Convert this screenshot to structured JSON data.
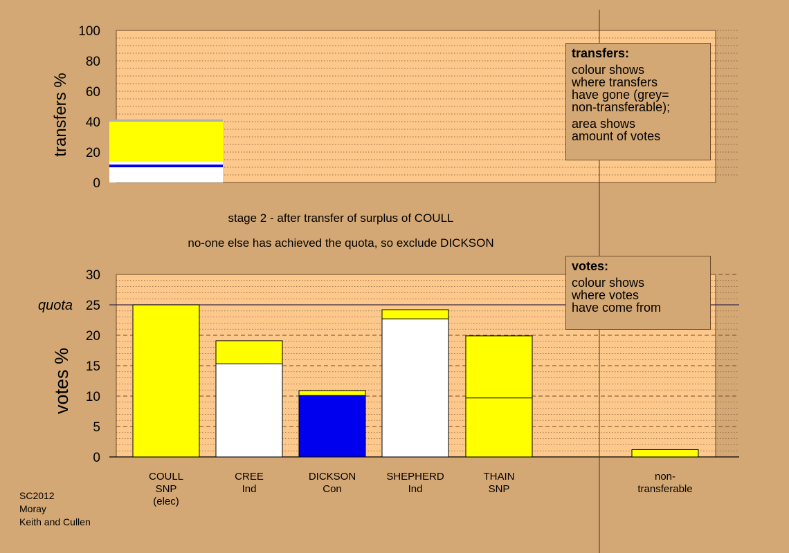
{
  "colors": {
    "background": "#d4a874",
    "plot_bg": "#fcc88c",
    "yellow": "#ffff00",
    "white": "#ffffff",
    "blue": "#0000ee",
    "grey": "#b0b0b0"
  },
  "captions": {
    "line1": "stage 2 - after transfer of surplus of COULL",
    "line2": "no-one else has achieved the quota, so exclude DICKSON"
  },
  "legend_transfers": {
    "title": "transfers:",
    "lines": [
      "colour shows",
      "where transfers",
      "have gone (grey=",
      "non-transferable);"
    ],
    "lines2": [
      "area shows",
      "amount of votes"
    ]
  },
  "legend_votes": {
    "title": "votes:",
    "lines": [
      "colour shows",
      "where votes",
      "have come from"
    ]
  },
  "credits": [
    "SC2012",
    "Moray",
    "Keith and Cullen"
  ],
  "chart_data": [
    {
      "type": "bar",
      "name_key": "transfers",
      "ylabel": "transfers %",
      "ylim": [
        0,
        100
      ],
      "yticks": [
        0,
        20,
        40,
        60,
        80,
        100
      ],
      "grid": "dotted",
      "stacked": true,
      "segments": [
        {
          "color": "white",
          "value": 10
        },
        {
          "color": "blue",
          "value": 1.8
        },
        {
          "color": "white",
          "value": 2.2
        },
        {
          "color": "yellow",
          "value": 26
        },
        {
          "color": "grey",
          "value": 1.5
        }
      ]
    },
    {
      "type": "bar",
      "name_key": "votes",
      "ylabel": "votes %",
      "ylim": [
        0,
        30
      ],
      "yticks": [
        0,
        5,
        10,
        15,
        20,
        25,
        30
      ],
      "grid": "dashed",
      "quota": {
        "label": "quota",
        "value": 25
      },
      "categories": [
        {
          "lines": [
            "COULL",
            "SNP",
            "(elec)"
          ],
          "segments": [
            {
              "color": "yellow",
              "value": 25
            }
          ]
        },
        {
          "lines": [
            "CREE",
            "Ind"
          ],
          "segments": [
            {
              "color": "white",
              "value": 15.3
            },
            {
              "color": "yellow",
              "value": 3.8
            }
          ]
        },
        {
          "lines": [
            "DICKSON",
            "Con"
          ],
          "segments": [
            {
              "color": "blue",
              "value": 10.1
            },
            {
              "color": "yellow",
              "value": 0.8
            }
          ]
        },
        {
          "lines": [
            "SHEPHERD",
            "Ind"
          ],
          "segments": [
            {
              "color": "white",
              "value": 22.7
            },
            {
              "color": "yellow",
              "value": 1.5
            }
          ]
        },
        {
          "lines": [
            "THAIN",
            "SNP"
          ],
          "segments": [
            {
              "color": "yellow",
              "value": 9.7
            },
            {
              "color": "yellow",
              "value": 10.2
            }
          ]
        },
        {
          "lines": [
            "non-",
            "transferable"
          ],
          "segments": [
            {
              "color": "yellow",
              "value": 1.2
            }
          ]
        }
      ]
    }
  ]
}
